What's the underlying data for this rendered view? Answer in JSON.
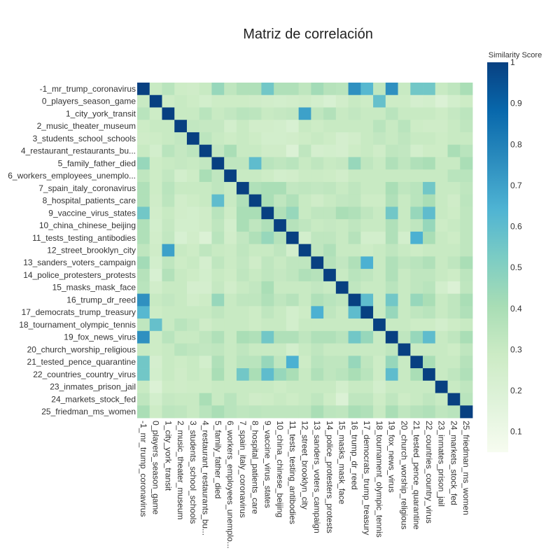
{
  "chart_data": {
    "type": "heatmap",
    "title": "Matriz de correlación",
    "colorbar": {
      "title": "Similarity Score",
      "range": [
        0.05,
        1.0
      ],
      "ticks": [
        "0.1",
        "0.2",
        "0.3",
        "0.4",
        "0.5",
        "0.6",
        "0.7",
        "0.8",
        "0.9",
        "1"
      ],
      "tick_values": [
        0.1,
        0.2,
        0.3,
        0.4,
        0.5,
        0.6,
        0.7,
        0.8,
        0.9,
        1.0
      ],
      "colorscale": [
        "#f7fcf0",
        "#e0f3db",
        "#ccebc5",
        "#a8ddb5",
        "#7bccc4",
        "#4eb3d3",
        "#2b8cbe",
        "#0868ac",
        "#084081"
      ]
    },
    "labels": [
      "-1_mr_trump_coronavirus",
      "0_players_season_game",
      "1_city_york_transit",
      "2_music_theater_museum",
      "3_students_school_schools",
      "4_restaurant_restaurants_bu...",
      "5_family_father_died",
      "6_workers_employees_unemplo...",
      "7_spain_italy_coronavirus",
      "8_hospital_patients_care",
      "9_vaccine_virus_states",
      "10_china_chinese_beijing",
      "11_tests_testing_antibodies",
      "12_street_brooklyn_city",
      "13_sanders_voters_campaign",
      "14_police_protesters_protests",
      "15_masks_mask_face",
      "16_trump_dr_reed",
      "17_democrats_trump_treasury",
      "18_tournament_olympic_tennis",
      "19_fox_news_virus",
      "20_church_worship_religious",
      "21_tested_pence_quarantine",
      "22_countries_country_virus",
      "23_inmates_prison_jail",
      "24_markets_stock_fed",
      "25_friedman_ms_women"
    ],
    "values": [
      [
        1.0,
        0.3,
        0.35,
        0.28,
        0.27,
        0.3,
        0.45,
        0.33,
        0.38,
        0.38,
        0.55,
        0.38,
        0.38,
        0.33,
        0.42,
        0.36,
        0.35,
        0.75,
        0.62,
        0.33,
        0.75,
        0.3,
        0.55,
        0.55,
        0.3,
        0.33,
        0.4
      ],
      [
        0.3,
        1.0,
        0.28,
        0.3,
        0.28,
        0.25,
        0.28,
        0.28,
        0.28,
        0.27,
        0.26,
        0.25,
        0.26,
        0.27,
        0.25,
        0.22,
        0.26,
        0.3,
        0.28,
        0.58,
        0.28,
        0.28,
        0.24,
        0.25,
        0.2,
        0.25,
        0.28
      ],
      [
        0.35,
        0.28,
        1.0,
        0.3,
        0.3,
        0.35,
        0.3,
        0.32,
        0.35,
        0.34,
        0.3,
        0.31,
        0.32,
        0.7,
        0.33,
        0.37,
        0.3,
        0.32,
        0.3,
        0.3,
        0.35,
        0.3,
        0.3,
        0.3,
        0.28,
        0.31,
        0.34
      ],
      [
        0.28,
        0.3,
        0.3,
        1.0,
        0.32,
        0.31,
        0.31,
        0.25,
        0.3,
        0.26,
        0.26,
        0.25,
        0.22,
        0.3,
        0.28,
        0.3,
        0.3,
        0.3,
        0.3,
        0.35,
        0.3,
        0.35,
        0.28,
        0.27,
        0.27,
        0.3,
        0.33
      ],
      [
        0.27,
        0.28,
        0.3,
        0.32,
        1.0,
        0.34,
        0.3,
        0.28,
        0.3,
        0.28,
        0.25,
        0.25,
        0.26,
        0.28,
        0.3,
        0.28,
        0.24,
        0.26,
        0.3,
        0.32,
        0.3,
        0.33,
        0.3,
        0.3,
        0.28,
        0.3,
        0.3
      ],
      [
        0.3,
        0.25,
        0.35,
        0.31,
        0.34,
        1.0,
        0.32,
        0.4,
        0.3,
        0.3,
        0.27,
        0.27,
        0.2,
        0.33,
        0.24,
        0.25,
        0.24,
        0.28,
        0.3,
        0.27,
        0.33,
        0.32,
        0.25,
        0.28,
        0.28,
        0.4,
        0.35
      ],
      [
        0.45,
        0.28,
        0.3,
        0.31,
        0.3,
        0.32,
        1.0,
        0.33,
        0.33,
        0.6,
        0.35,
        0.33,
        0.35,
        0.3,
        0.33,
        0.3,
        0.31,
        0.45,
        0.33,
        0.3,
        0.38,
        0.33,
        0.38,
        0.4,
        0.3,
        0.3,
        0.4
      ],
      [
        0.33,
        0.28,
        0.32,
        0.25,
        0.28,
        0.4,
        0.33,
        1.0,
        0.3,
        0.3,
        0.28,
        0.25,
        0.26,
        0.29,
        0.29,
        0.28,
        0.26,
        0.3,
        0.3,
        0.3,
        0.3,
        0.3,
        0.3,
        0.3,
        0.3,
        0.35,
        0.35
      ],
      [
        0.38,
        0.28,
        0.35,
        0.3,
        0.3,
        0.3,
        0.33,
        0.3,
        1.0,
        0.38,
        0.4,
        0.4,
        0.32,
        0.33,
        0.32,
        0.33,
        0.3,
        0.33,
        0.3,
        0.3,
        0.4,
        0.33,
        0.35,
        0.55,
        0.3,
        0.3,
        0.33
      ],
      [
        0.38,
        0.27,
        0.34,
        0.26,
        0.28,
        0.3,
        0.6,
        0.3,
        0.38,
        1.0,
        0.4,
        0.33,
        0.38,
        0.3,
        0.27,
        0.3,
        0.32,
        0.33,
        0.28,
        0.28,
        0.38,
        0.3,
        0.35,
        0.4,
        0.3,
        0.27,
        0.34
      ],
      [
        0.55,
        0.26,
        0.3,
        0.26,
        0.25,
        0.27,
        0.35,
        0.28,
        0.4,
        0.4,
        1.0,
        0.38,
        0.45,
        0.3,
        0.33,
        0.33,
        0.4,
        0.38,
        0.33,
        0.3,
        0.55,
        0.3,
        0.45,
        0.6,
        0.3,
        0.28,
        0.33
      ],
      [
        0.38,
        0.25,
        0.31,
        0.25,
        0.25,
        0.27,
        0.33,
        0.25,
        0.4,
        0.33,
        0.38,
        1.0,
        0.36,
        0.33,
        0.3,
        0.31,
        0.3,
        0.33,
        0.3,
        0.3,
        0.38,
        0.3,
        0.33,
        0.45,
        0.28,
        0.3,
        0.33
      ],
      [
        0.38,
        0.26,
        0.32,
        0.22,
        0.26,
        0.2,
        0.35,
        0.26,
        0.32,
        0.38,
        0.45,
        0.36,
        1.0,
        0.25,
        0.33,
        0.33,
        0.3,
        0.36,
        0.25,
        0.25,
        0.38,
        0.25,
        0.65,
        0.4,
        0.3,
        0.28,
        0.33
      ],
      [
        0.33,
        0.27,
        0.7,
        0.3,
        0.28,
        0.33,
        0.3,
        0.29,
        0.33,
        0.3,
        0.3,
        0.33,
        0.25,
        1.0,
        0.33,
        0.38,
        0.3,
        0.3,
        0.28,
        0.3,
        0.33,
        0.3,
        0.28,
        0.3,
        0.3,
        0.3,
        0.33
      ],
      [
        0.42,
        0.25,
        0.33,
        0.28,
        0.3,
        0.24,
        0.33,
        0.29,
        0.32,
        0.27,
        0.33,
        0.3,
        0.33,
        0.33,
        1.0,
        0.36,
        0.32,
        0.38,
        0.65,
        0.3,
        0.38,
        0.33,
        0.35,
        0.38,
        0.3,
        0.33,
        0.4
      ],
      [
        0.36,
        0.22,
        0.37,
        0.3,
        0.28,
        0.25,
        0.3,
        0.28,
        0.33,
        0.3,
        0.33,
        0.31,
        0.33,
        0.38,
        0.36,
        1.0,
        0.3,
        0.35,
        0.33,
        0.3,
        0.38,
        0.3,
        0.33,
        0.33,
        0.3,
        0.28,
        0.34
      ],
      [
        0.35,
        0.26,
        0.3,
        0.3,
        0.24,
        0.24,
        0.31,
        0.26,
        0.3,
        0.32,
        0.4,
        0.3,
        0.3,
        0.3,
        0.32,
        0.3,
        1.0,
        0.33,
        0.3,
        0.3,
        0.35,
        0.3,
        0.33,
        0.35,
        0.25,
        0.2,
        0.33
      ],
      [
        0.75,
        0.3,
        0.32,
        0.3,
        0.26,
        0.28,
        0.45,
        0.3,
        0.33,
        0.33,
        0.38,
        0.33,
        0.36,
        0.3,
        0.38,
        0.35,
        0.33,
        1.0,
        0.6,
        0.3,
        0.55,
        0.3,
        0.45,
        0.4,
        0.3,
        0.33,
        0.4
      ],
      [
        0.62,
        0.28,
        0.3,
        0.3,
        0.3,
        0.3,
        0.33,
        0.3,
        0.3,
        0.28,
        0.33,
        0.3,
        0.25,
        0.28,
        0.65,
        0.33,
        0.3,
        0.6,
        1.0,
        0.3,
        0.45,
        0.3,
        0.33,
        0.35,
        0.3,
        0.33,
        0.38
      ],
      [
        0.33,
        0.58,
        0.3,
        0.35,
        0.32,
        0.27,
        0.3,
        0.3,
        0.3,
        0.28,
        0.3,
        0.3,
        0.25,
        0.3,
        0.3,
        0.3,
        0.3,
        0.3,
        0.3,
        1.0,
        0.3,
        0.3,
        0.28,
        0.28,
        0.25,
        0.28,
        0.3
      ],
      [
        0.75,
        0.28,
        0.35,
        0.3,
        0.3,
        0.33,
        0.38,
        0.3,
        0.4,
        0.38,
        0.55,
        0.38,
        0.38,
        0.33,
        0.38,
        0.38,
        0.35,
        0.55,
        0.45,
        0.3,
        1.0,
        0.33,
        0.45,
        0.6,
        0.3,
        0.33,
        0.4
      ],
      [
        0.3,
        0.28,
        0.3,
        0.35,
        0.33,
        0.32,
        0.33,
        0.3,
        0.33,
        0.3,
        0.3,
        0.3,
        0.25,
        0.3,
        0.33,
        0.3,
        0.3,
        0.3,
        0.3,
        0.3,
        0.33,
        1.0,
        0.3,
        0.3,
        0.3,
        0.28,
        0.33
      ],
      [
        0.55,
        0.24,
        0.3,
        0.28,
        0.3,
        0.25,
        0.38,
        0.3,
        0.35,
        0.35,
        0.45,
        0.33,
        0.65,
        0.28,
        0.35,
        0.33,
        0.33,
        0.45,
        0.33,
        0.28,
        0.45,
        0.3,
        1.0,
        0.4,
        0.3,
        0.3,
        0.36
      ],
      [
        0.55,
        0.25,
        0.3,
        0.27,
        0.3,
        0.28,
        0.4,
        0.3,
        0.55,
        0.4,
        0.6,
        0.45,
        0.4,
        0.3,
        0.38,
        0.33,
        0.35,
        0.4,
        0.35,
        0.28,
        0.6,
        0.3,
        0.4,
        1.0,
        0.3,
        0.33,
        0.38
      ],
      [
        0.3,
        0.2,
        0.28,
        0.27,
        0.28,
        0.28,
        0.3,
        0.3,
        0.3,
        0.3,
        0.3,
        0.28,
        0.3,
        0.3,
        0.3,
        0.3,
        0.25,
        0.3,
        0.3,
        0.25,
        0.3,
        0.3,
        0.3,
        0.3,
        1.0,
        0.3,
        0.33
      ],
      [
        0.33,
        0.25,
        0.31,
        0.3,
        0.3,
        0.4,
        0.3,
        0.35,
        0.3,
        0.27,
        0.28,
        0.3,
        0.28,
        0.3,
        0.33,
        0.28,
        0.2,
        0.33,
        0.33,
        0.28,
        0.33,
        0.28,
        0.3,
        0.33,
        0.3,
        1.0,
        0.35
      ],
      [
        0.4,
        0.28,
        0.34,
        0.33,
        0.3,
        0.35,
        0.4,
        0.35,
        0.33,
        0.34,
        0.33,
        0.33,
        0.33,
        0.33,
        0.4,
        0.34,
        0.33,
        0.4,
        0.38,
        0.3,
        0.4,
        0.33,
        0.36,
        0.38,
        0.33,
        0.35,
        1.0
      ]
    ]
  }
}
